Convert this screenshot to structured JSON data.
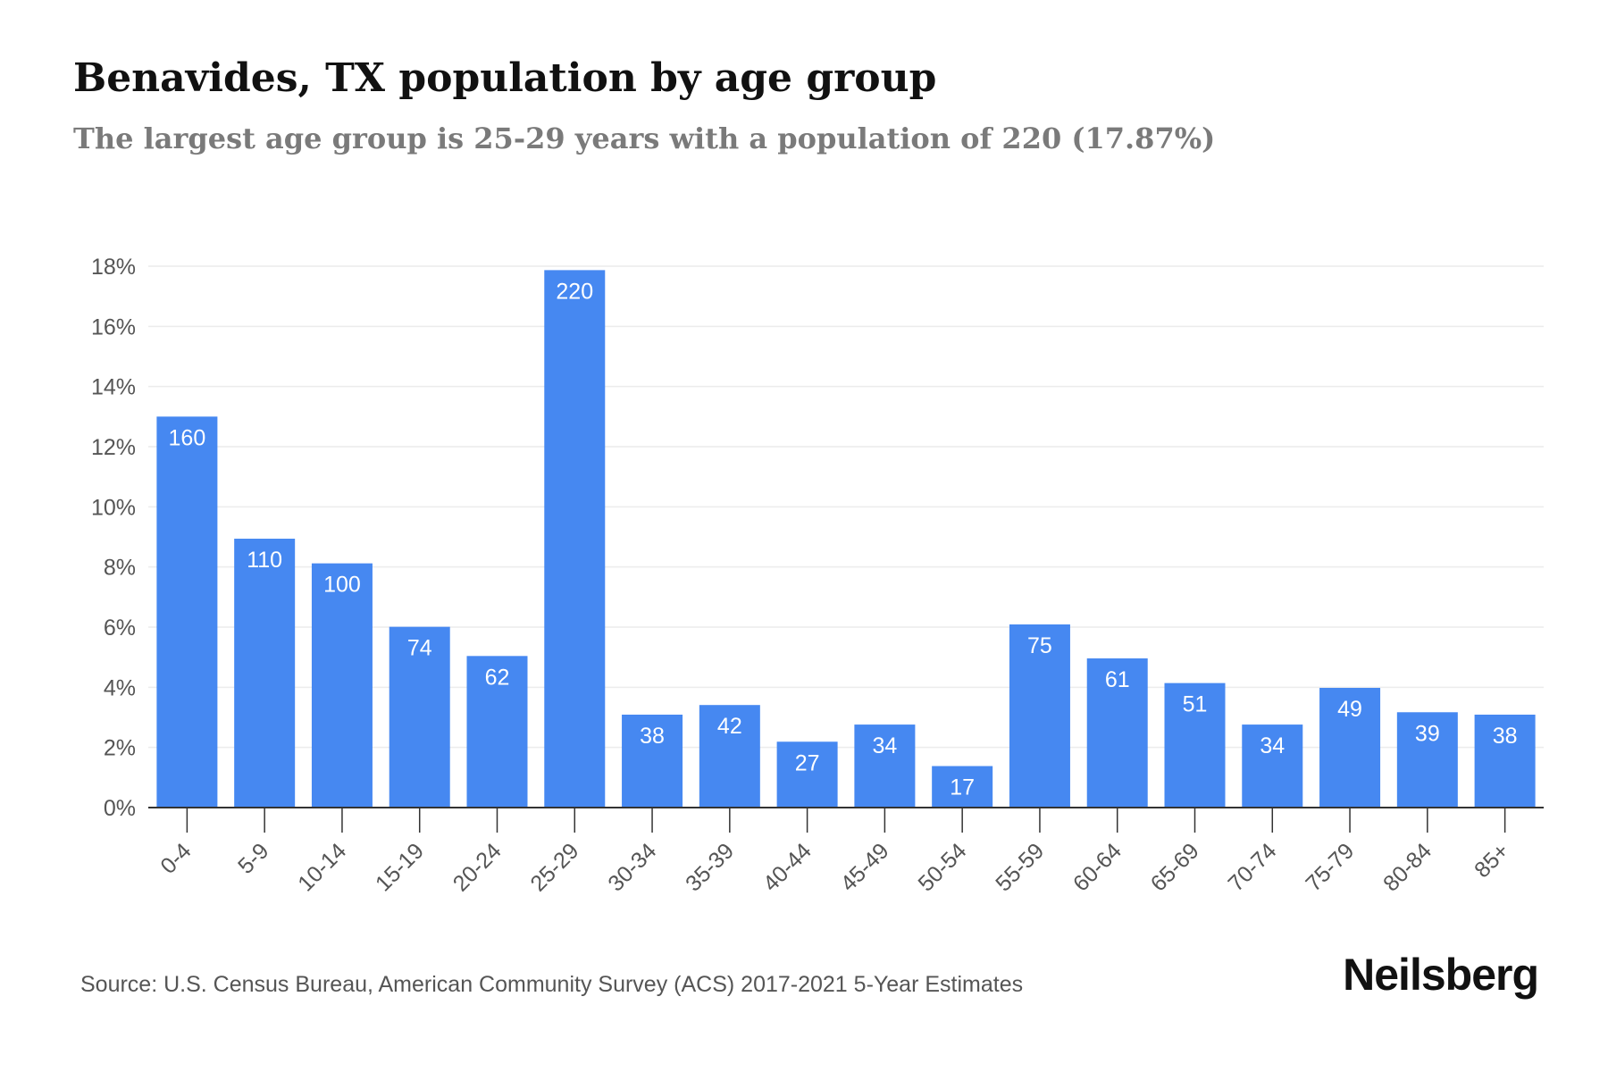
{
  "header": {
    "title": "Benavides, TX population by age group",
    "subtitle": "The largest age group is 25-29 years with a population of 220 (17.87%)"
  },
  "footer": {
    "source": "Source: U.S. Census Bureau, American Community Survey (ACS) 2017-2021 5-Year Estimates",
    "brand": "Neilsberg"
  },
  "colors": {
    "bar": "#4688f1",
    "bar_label": "#ffffff",
    "axis": "#333333",
    "grid": "#ececec",
    "tick_text": "#555555"
  },
  "chart_data": {
    "type": "bar",
    "title": "Benavides, TX population by age group",
    "xlabel": "",
    "ylabel": "",
    "ylim": [
      0,
      18
    ],
    "y_ticks": [
      "0%",
      "2%",
      "4%",
      "6%",
      "8%",
      "10%",
      "12%",
      "14%",
      "16%",
      "18%"
    ],
    "grid": true,
    "legend": "none",
    "categories": [
      "0-4",
      "5-9",
      "10-14",
      "15-19",
      "20-24",
      "25-29",
      "30-34",
      "35-39",
      "40-44",
      "45-49",
      "50-54",
      "55-59",
      "60-64",
      "65-69",
      "70-74",
      "75-79",
      "80-84",
      "85+"
    ],
    "series": [
      {
        "values_percent": [
          13.0,
          8.94,
          8.12,
          6.01,
          5.04,
          17.87,
          3.09,
          3.41,
          2.19,
          2.76,
          1.38,
          6.09,
          4.96,
          4.14,
          2.76,
          3.98,
          3.17,
          3.09
        ],
        "population_labels": [
          "160",
          "110",
          "100",
          "74",
          "62",
          "220",
          "38",
          "42",
          "27",
          "34",
          "17",
          "75",
          "61",
          "51",
          "34",
          "49",
          "39",
          "38"
        ]
      }
    ]
  }
}
